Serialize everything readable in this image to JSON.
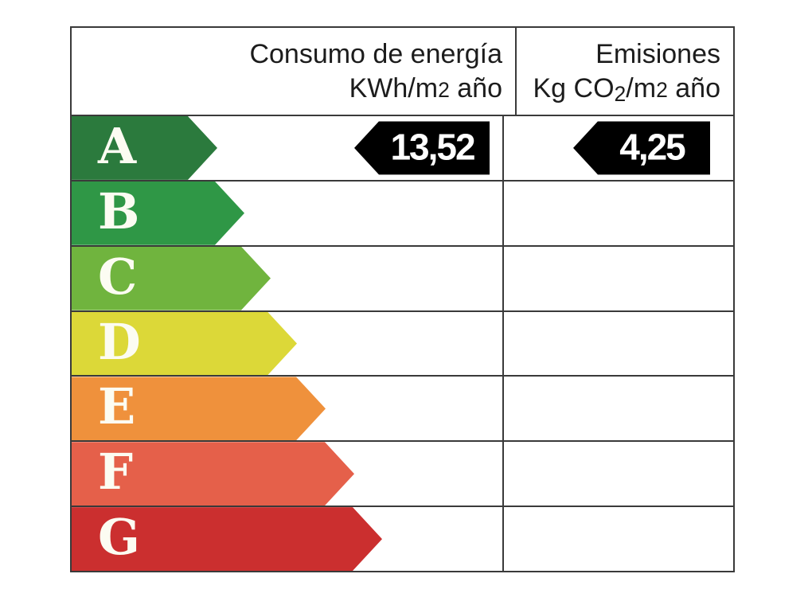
{
  "header": {
    "consumption": {
      "line1": "Consumo de energía",
      "line2_unit": "KWh/m",
      "line2_exponent": "2",
      "line2_suffix": " año"
    },
    "emissions": {
      "line1": "Emisiones",
      "line2_unit": "Kg CO",
      "line2_subscript": "2",
      "line2_mid": "/m",
      "line2_exponent": "2",
      "line2_suffix": " año"
    }
  },
  "values": {
    "consumption": "13,52",
    "emissions": "4,25"
  },
  "ratings": [
    {
      "letter": "A",
      "color": "#2b7a3d",
      "arrow_width": 183
    },
    {
      "letter": "B",
      "color": "#2f9746",
      "arrow_width": 217
    },
    {
      "letter": "C",
      "color": "#70b43e",
      "arrow_width": 250
    },
    {
      "letter": "D",
      "color": "#dcd838",
      "arrow_width": 283
    },
    {
      "letter": "E",
      "color": "#ef913c",
      "arrow_width": 319
    },
    {
      "letter": "F",
      "color": "#e5604a",
      "arrow_width": 355
    },
    {
      "letter": "G",
      "color": "#cb2f2f",
      "arrow_width": 390
    }
  ],
  "colors": {
    "grid_line": "#3a3a3a",
    "value_arrow_background": "#000000",
    "value_text": "#ffffff",
    "rating_letter_text": "#fcfcf2",
    "header_text": "#1c1c1c",
    "page_background": "#ffffff"
  },
  "chart_data": {
    "type": "table",
    "columns": [
      "Consumo de energía KWh/m2 año",
      "Emisiones Kg CO2/m2 año"
    ],
    "categories": [
      "A",
      "B",
      "C",
      "D",
      "E",
      "F",
      "G"
    ],
    "assigned_rating": "A",
    "values": {
      "consumo_de_energia_kwh_m2_ano": 13.52,
      "emisiones_kg_co2_m2_ano": 4.25
    },
    "legend_position": "none",
    "grid": true
  }
}
